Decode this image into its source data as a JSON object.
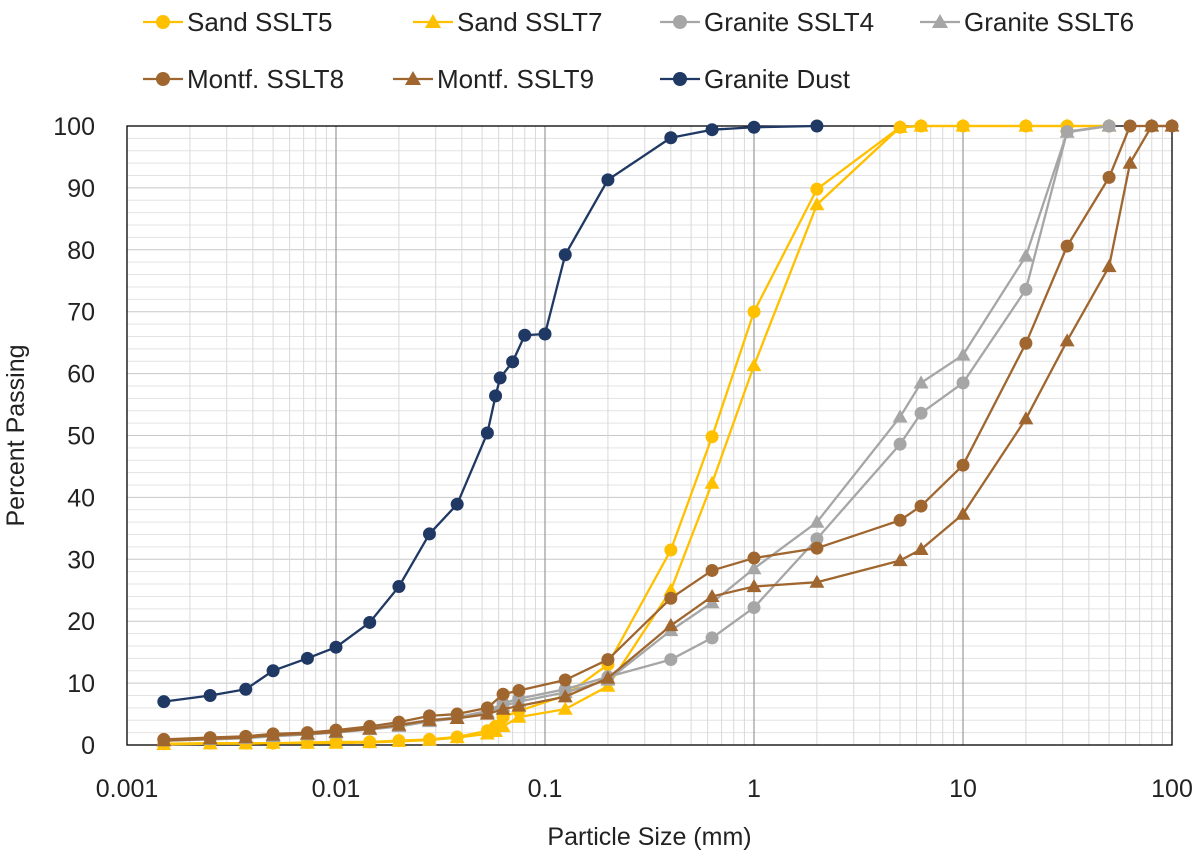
{
  "chart_data": {
    "type": "line",
    "title": "",
    "xlabel": "Particle Size (mm)",
    "ylabel": "Percent Passing",
    "x_scale": "log",
    "xlim": [
      0.001,
      100
    ],
    "ylim": [
      0,
      100
    ],
    "x_ticks": [
      "0.001",
      "0.01",
      "0.1",
      "1",
      "10",
      "100"
    ],
    "y_ticks": [
      "0",
      "10",
      "20",
      "30",
      "40",
      "50",
      "60",
      "70",
      "80",
      "90",
      "100"
    ],
    "grid": true,
    "legend_position": "top",
    "series": [
      {
        "name": "Sand SSLT5",
        "color": "#FFC000",
        "marker": "circle",
        "points": [
          [
            0.0015,
            0.2
          ],
          [
            0.0025,
            0.3
          ],
          [
            0.0037,
            0.3
          ],
          [
            0.005,
            0.3
          ],
          [
            0.0073,
            0.4
          ],
          [
            0.01,
            0.5
          ],
          [
            0.0145,
            0.5
          ],
          [
            0.02,
            0.7
          ],
          [
            0.028,
            0.9
          ],
          [
            0.038,
            1.3
          ],
          [
            0.053,
            2.3
          ],
          [
            0.058,
            3.0
          ],
          [
            0.063,
            4.5
          ],
          [
            0.075,
            5.5
          ],
          [
            0.125,
            8.0
          ],
          [
            0.2,
            13.0
          ],
          [
            0.4,
            31.5
          ],
          [
            0.63,
            49.8
          ],
          [
            1,
            70.0
          ],
          [
            2,
            89.8
          ],
          [
            5,
            99.8
          ],
          [
            6.3,
            100
          ],
          [
            10,
            100
          ],
          [
            20,
            100
          ],
          [
            31.5,
            100
          ],
          [
            50,
            100
          ]
        ]
      },
      {
        "name": "Sand SSLT7",
        "color": "#FFC000",
        "marker": "triangle",
        "points": [
          [
            0.0015,
            0.1
          ],
          [
            0.0025,
            0.2
          ],
          [
            0.0037,
            0.2
          ],
          [
            0.005,
            0.3
          ],
          [
            0.0073,
            0.3
          ],
          [
            0.01,
            0.3
          ],
          [
            0.0145,
            0.4
          ],
          [
            0.02,
            0.6
          ],
          [
            0.028,
            0.8
          ],
          [
            0.038,
            1.2
          ],
          [
            0.053,
            1.8
          ],
          [
            0.058,
            2.2
          ],
          [
            0.063,
            3.0
          ],
          [
            0.075,
            4.5
          ],
          [
            0.125,
            5.8
          ],
          [
            0.2,
            9.5
          ],
          [
            0.4,
            25.0
          ],
          [
            0.63,
            42.3
          ],
          [
            1,
            61.3
          ],
          [
            2,
            87.3
          ],
          [
            5,
            99.8
          ],
          [
            6.3,
            100
          ],
          [
            10,
            100
          ],
          [
            20,
            100
          ],
          [
            31.5,
            100
          ],
          [
            50,
            100
          ]
        ]
      },
      {
        "name": "Granite SSLT4",
        "color": "#A6A6A6",
        "marker": "circle",
        "points": [
          [
            0.0015,
            0.8
          ],
          [
            0.0025,
            1.0
          ],
          [
            0.0037,
            1.2
          ],
          [
            0.005,
            1.5
          ],
          [
            0.0073,
            1.8
          ],
          [
            0.01,
            2.2
          ],
          [
            0.0145,
            2.8
          ],
          [
            0.02,
            3.3
          ],
          [
            0.028,
            4.0
          ],
          [
            0.038,
            4.5
          ],
          [
            0.053,
            5.5
          ],
          [
            0.063,
            6.7
          ],
          [
            0.075,
            7.5
          ],
          [
            0.125,
            9.0
          ],
          [
            0.2,
            11.0
          ],
          [
            0.4,
            13.8
          ],
          [
            0.63,
            17.3
          ],
          [
            1,
            22.2
          ],
          [
            2,
            33.3
          ],
          [
            5,
            48.6
          ],
          [
            6.3,
            53.6
          ],
          [
            10,
            58.5
          ],
          [
            20,
            73.6
          ],
          [
            31.5,
            99.1
          ],
          [
            50,
            100
          ]
        ]
      },
      {
        "name": "Granite SSLT6",
        "color": "#A6A6A6",
        "marker": "triangle",
        "points": [
          [
            0.0015,
            0.7
          ],
          [
            0.0025,
            0.9
          ],
          [
            0.0037,
            1.1
          ],
          [
            0.005,
            1.4
          ],
          [
            0.0073,
            1.7
          ],
          [
            0.01,
            2.0
          ],
          [
            0.0145,
            2.5
          ],
          [
            0.02,
            3.0
          ],
          [
            0.028,
            3.8
          ],
          [
            0.038,
            4.3
          ],
          [
            0.053,
            5.3
          ],
          [
            0.063,
            6.3
          ],
          [
            0.075,
            7.0
          ],
          [
            0.125,
            8.5
          ],
          [
            0.2,
            10.5
          ],
          [
            0.4,
            18.5
          ],
          [
            0.63,
            23.0
          ],
          [
            1,
            28.5
          ],
          [
            2,
            36.0
          ],
          [
            5,
            53.0
          ],
          [
            6.3,
            58.5
          ],
          [
            10,
            63.0
          ],
          [
            20,
            79.0
          ],
          [
            31.5,
            99.0
          ],
          [
            50,
            100
          ]
        ]
      },
      {
        "name": "Montf. SSLT8",
        "color": "#A0662F",
        "marker": "circle",
        "points": [
          [
            0.0015,
            0.9
          ],
          [
            0.0025,
            1.2
          ],
          [
            0.0037,
            1.4
          ],
          [
            0.005,
            1.8
          ],
          [
            0.0073,
            2.0
          ],
          [
            0.01,
            2.4
          ],
          [
            0.0145,
            3.0
          ],
          [
            0.02,
            3.7
          ],
          [
            0.028,
            4.7
          ],
          [
            0.038,
            5.0
          ],
          [
            0.053,
            6.0
          ],
          [
            0.063,
            8.2
          ],
          [
            0.075,
            8.8
          ],
          [
            0.125,
            10.5
          ],
          [
            0.2,
            13.8
          ],
          [
            0.4,
            23.7
          ],
          [
            0.63,
            28.2
          ],
          [
            1,
            30.2
          ],
          [
            2,
            31.8
          ],
          [
            5,
            36.3
          ],
          [
            6.3,
            38.6
          ],
          [
            10,
            45.2
          ],
          [
            20,
            64.9
          ],
          [
            31.5,
            80.6
          ],
          [
            50,
            91.7
          ],
          [
            63,
            100
          ],
          [
            80,
            100
          ],
          [
            100,
            100
          ]
        ]
      },
      {
        "name": "Montf. SSLT9",
        "color": "#A0662F",
        "marker": "triangle",
        "points": [
          [
            0.0015,
            0.7
          ],
          [
            0.0025,
            1.0
          ],
          [
            0.0037,
            1.2
          ],
          [
            0.005,
            1.6
          ],
          [
            0.0073,
            1.8
          ],
          [
            0.01,
            2.1
          ],
          [
            0.0145,
            2.6
          ],
          [
            0.02,
            3.2
          ],
          [
            0.028,
            4.0
          ],
          [
            0.038,
            4.3
          ],
          [
            0.053,
            5.0
          ],
          [
            0.063,
            5.8
          ],
          [
            0.075,
            6.3
          ],
          [
            0.125,
            7.8
          ],
          [
            0.2,
            10.8
          ],
          [
            0.4,
            19.3
          ],
          [
            0.63,
            24.0
          ],
          [
            1,
            25.6
          ],
          [
            2,
            26.3
          ],
          [
            5,
            29.8
          ],
          [
            6.3,
            31.6
          ],
          [
            10,
            37.3
          ],
          [
            20,
            52.7
          ],
          [
            31.5,
            65.3
          ],
          [
            50,
            77.3
          ],
          [
            63,
            94.0
          ],
          [
            80,
            100
          ],
          [
            100,
            100
          ]
        ]
      },
      {
        "name": "Granite Dust",
        "color": "#1F3864",
        "marker": "circle",
        "points": [
          [
            0.0015,
            7.0
          ],
          [
            0.0025,
            8.0
          ],
          [
            0.0037,
            9.0
          ],
          [
            0.005,
            12.0
          ],
          [
            0.0073,
            14.0
          ],
          [
            0.01,
            15.8
          ],
          [
            0.0145,
            19.8
          ],
          [
            0.02,
            25.6
          ],
          [
            0.028,
            34.1
          ],
          [
            0.038,
            38.9
          ],
          [
            0.053,
            50.4
          ],
          [
            0.058,
            56.4
          ],
          [
            0.061,
            59.3
          ],
          [
            0.07,
            61.9
          ],
          [
            0.08,
            66.2
          ],
          [
            0.1,
            66.4
          ],
          [
            0.125,
            79.2
          ],
          [
            0.2,
            91.3
          ],
          [
            0.4,
            98.1
          ],
          [
            0.63,
            99.4
          ],
          [
            1,
            99.8
          ],
          [
            2,
            100
          ]
        ]
      }
    ]
  }
}
